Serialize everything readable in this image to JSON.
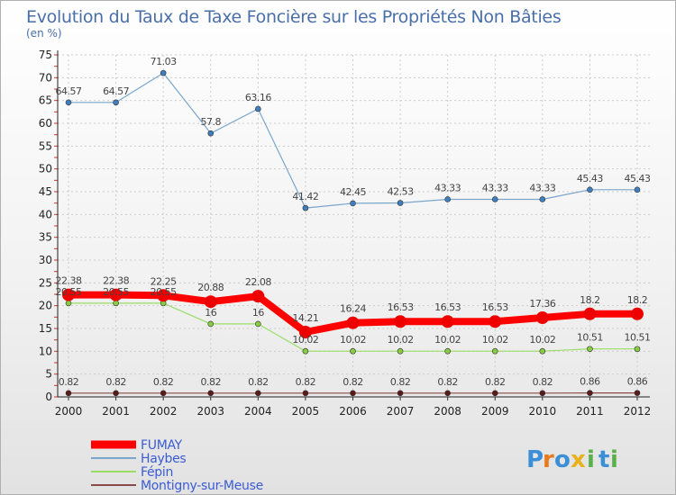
{
  "chart_data": {
    "type": "line",
    "title": "Evolution du Taux de Taxe Foncière sur les Propriétés Non Bâties",
    "subtitle": "(en %)",
    "xlabel": "",
    "ylabel": "",
    "ylim": [
      0,
      75
    ],
    "yticks": [
      0,
      5,
      10,
      15,
      20,
      25,
      30,
      35,
      40,
      45,
      50,
      55,
      60,
      65,
      70,
      75
    ],
    "grid": true,
    "legend_position": "bottom-left",
    "categories": [
      "2000",
      "2001",
      "2002",
      "2003",
      "2004",
      "2005",
      "2006",
      "2007",
      "2008",
      "2009",
      "2010",
      "2011",
      "2012"
    ],
    "series": [
      {
        "name": "FUMAY",
        "color": "#ff0000",
        "marker": "#ee0000",
        "values": [
          22.38,
          22.38,
          22.25,
          20.88,
          22.08,
          14.21,
          16.24,
          16.53,
          16.53,
          16.53,
          17.36,
          18.2,
          18.2
        ],
        "labels": [
          "22.38",
          "22.38",
          "22.25",
          "20.88",
          "22.08",
          "14.21",
          "16.24",
          "16.53",
          "16.53",
          "16.53",
          "17.36",
          "18.2",
          "18.2"
        ]
      },
      {
        "name": "Haybes",
        "color": "#7aa6cc",
        "marker": "#3f7fbf",
        "values": [
          64.57,
          64.57,
          71.03,
          57.8,
          63.16,
          41.42,
          42.45,
          42.53,
          43.33,
          43.33,
          43.33,
          45.43,
          45.43
        ],
        "labels": [
          "64.57",
          "64.57",
          "71.03",
          "57.8",
          "63.16",
          "41.42",
          "42.45",
          "42.53",
          "43.33",
          "43.33",
          "43.33",
          "45.43",
          "45.43"
        ]
      },
      {
        "name": "Fépin",
        "color": "#99dd66",
        "marker": "#88cc44",
        "values": [
          20.55,
          20.55,
          20.55,
          16,
          16,
          10.02,
          10.02,
          10.02,
          10.02,
          10.02,
          10.02,
          10.51,
          10.51
        ],
        "labels": [
          "20.55",
          "20.55",
          "20.55",
          "16",
          "16",
          "10.02",
          "10.02",
          "10.02",
          "10.02",
          "10.02",
          "10.02",
          "10.51",
          "10.51"
        ]
      },
      {
        "name": "Montigny-sur-Meuse",
        "color": "#8a4a4a",
        "marker": "#5a1a1a",
        "values": [
          0.82,
          0.82,
          0.82,
          0.82,
          0.82,
          0.82,
          0.82,
          0.82,
          0.82,
          0.82,
          0.82,
          0.86,
          0.86
        ],
        "labels": [
          "0.82",
          "0.82",
          "0.82",
          "0.82",
          "0.82",
          "0.82",
          "0.82",
          "0.82",
          "0.82",
          "0.82",
          "0.82",
          "0.86",
          "0.86"
        ]
      }
    ]
  },
  "logo": {
    "letters": [
      "P",
      "r",
      "o",
      "x",
      "i",
      "t",
      "i"
    ],
    "colors": [
      "#3b8fd6",
      "#e87a1e",
      "#3b8fd6",
      "#e8b21e",
      "#5ab04a",
      "#3b8fd6",
      "#5ab04a"
    ]
  }
}
